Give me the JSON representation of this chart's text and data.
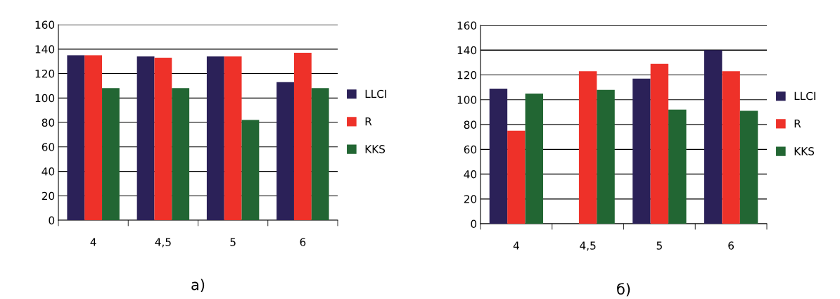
{
  "chart_data": [
    {
      "type": "bar",
      "title": "а)",
      "categories": [
        "4",
        "4,5",
        "5",
        "6"
      ],
      "series": [
        {
          "name": "LLCI",
          "color": "#2b2158",
          "values": [
            135,
            134,
            134,
            113
          ]
        },
        {
          "name": "R",
          "color": "#ee3129",
          "values": [
            135,
            133,
            134,
            137
          ]
        },
        {
          "name": "KKS",
          "color": "#226633",
          "values": [
            108,
            108,
            82,
            108
          ]
        }
      ],
      "ylim": [
        0,
        160
      ],
      "yticks": [
        0,
        20,
        40,
        60,
        80,
        100,
        120,
        140,
        160
      ],
      "grid": "y",
      "legend": "right"
    },
    {
      "type": "bar",
      "title": "б)",
      "categories": [
        "4",
        "4,5",
        "5",
        "6"
      ],
      "series": [
        {
          "name": "LLCI",
          "color": "#2b2158",
          "values": [
            109,
            null,
            117,
            140
          ]
        },
        {
          "name": "R",
          "color": "#ee3129",
          "values": [
            75,
            123,
            129,
            123
          ]
        },
        {
          "name": "KKS",
          "color": "#226633",
          "values": [
            105,
            108,
            92,
            91
          ]
        }
      ],
      "ylim": [
        0,
        160
      ],
      "yticks": [
        0,
        20,
        40,
        60,
        80,
        100,
        120,
        140,
        160
      ],
      "grid": "y",
      "legend": "right"
    }
  ]
}
